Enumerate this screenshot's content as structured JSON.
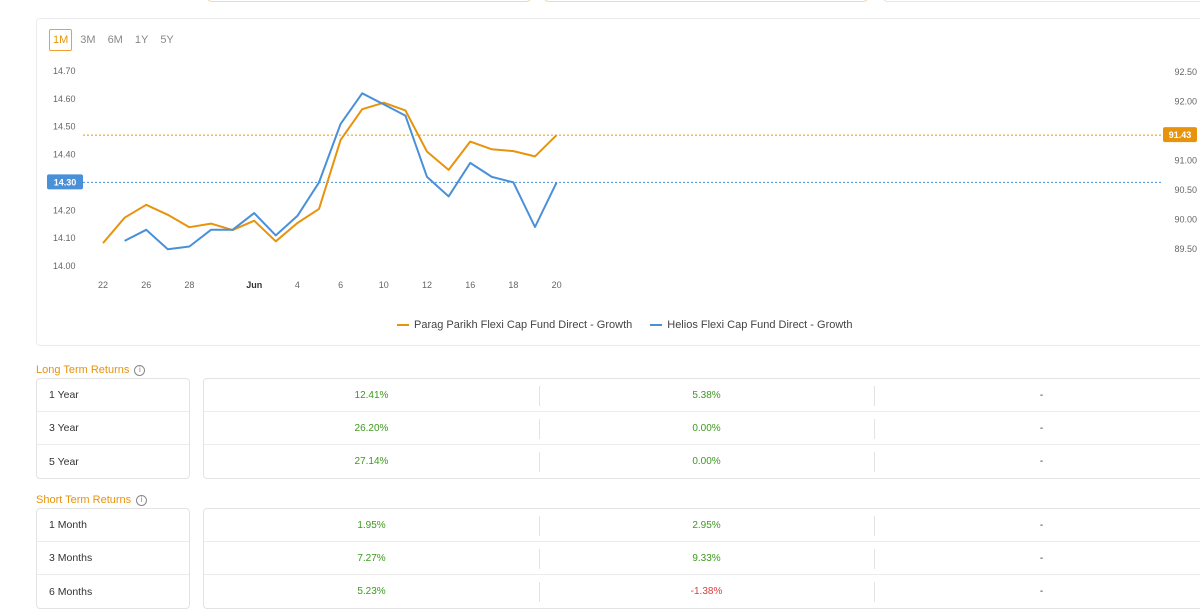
{
  "ranges": [
    "1M",
    "3M",
    "6M",
    "1Y",
    "5Y"
  ],
  "active_range": "1M",
  "chart_data": {
    "type": "line",
    "x_ticks": [
      "22",
      "26",
      "28",
      "Jun",
      "4",
      "6",
      "10",
      "12",
      "16",
      "18",
      "20"
    ],
    "left_axis": {
      "ticks": [
        "14.70",
        "14.60",
        "14.50",
        "14.40",
        "14.30",
        "14.20",
        "14.10",
        "14.00"
      ],
      "ylim": [
        14.0,
        14.7
      ]
    },
    "right_axis": {
      "ticks": [
        "92.50",
        "92.00",
        "91.50",
        "91.00",
        "90.50",
        "90.00",
        "89.50"
      ],
      "ylim": [
        89.5,
        92.5
      ]
    },
    "series": [
      {
        "name": "Parag Parikh Flexi Cap Fund Direct - Growth",
        "axis": "right",
        "color": "#e8930c",
        "points": [
          [
            22,
            89.6
          ],
          [
            23,
            90.03
          ],
          [
            24,
            90.25
          ],
          [
            25,
            90.08
          ],
          [
            26,
            89.87
          ],
          [
            27,
            89.93
          ],
          [
            28,
            89.82
          ],
          [
            29,
            89.98
          ],
          [
            30,
            89.63
          ],
          [
            31,
            89.94
          ],
          [
            32,
            90.18
          ],
          [
            33,
            91.35
          ],
          [
            34,
            91.87
          ],
          [
            35,
            91.98
          ],
          [
            36,
            91.85
          ],
          [
            37,
            91.15
          ],
          [
            38,
            90.84
          ],
          [
            39,
            91.32
          ],
          [
            40,
            91.19
          ],
          [
            41,
            91.16
          ],
          [
            42,
            91.07
          ],
          [
            43,
            91.43
          ]
        ],
        "end_label": "91.43"
      },
      {
        "name": "Helios Flexi Cap Fund Direct - Growth",
        "axis": "left",
        "color": "#4a90d9",
        "points": [
          [
            23,
            14.09
          ],
          [
            24,
            14.13
          ],
          [
            25,
            14.06
          ],
          [
            26,
            14.07
          ],
          [
            27,
            14.13
          ],
          [
            28,
            14.13
          ],
          [
            29,
            14.19
          ],
          [
            30,
            14.11
          ],
          [
            31,
            14.18
          ],
          [
            32,
            14.3
          ],
          [
            33,
            14.51
          ],
          [
            34,
            14.62
          ],
          [
            35,
            14.58
          ],
          [
            36,
            14.54
          ],
          [
            37,
            14.32
          ],
          [
            38,
            14.25
          ],
          [
            39,
            14.37
          ],
          [
            40,
            14.32
          ],
          [
            41,
            14.3
          ],
          [
            42,
            14.14
          ],
          [
            43,
            14.3
          ]
        ],
        "end_label": "14.30"
      }
    ],
    "grid": false,
    "legend": "bottom"
  },
  "long_term": {
    "title": "Long Term Returns",
    "rows": [
      {
        "label": "1 Year",
        "v1": "12.41%",
        "v2": "5.38%",
        "v3": "-"
      },
      {
        "label": "3 Year",
        "v1": "26.20%",
        "v2": "0.00%",
        "v3": "-"
      },
      {
        "label": "5 Year",
        "v1": "27.14%",
        "v2": "0.00%",
        "v3": "-"
      }
    ]
  },
  "short_term": {
    "title": "Short Term Returns",
    "rows": [
      {
        "label": "1 Month",
        "v1": "1.95%",
        "v2": "2.95%",
        "v3": "-"
      },
      {
        "label": "3 Months",
        "v1": "7.27%",
        "v2": "9.33%",
        "v3": "-"
      },
      {
        "label": "6 Months",
        "v1": "5.23%",
        "v2": "-1.38%",
        "v3": "-"
      }
    ]
  },
  "colors": {
    "accent": "#e8930c",
    "blue": "#4a90d9",
    "positive": "#3c9a1e",
    "negative": "#e03b3b"
  }
}
